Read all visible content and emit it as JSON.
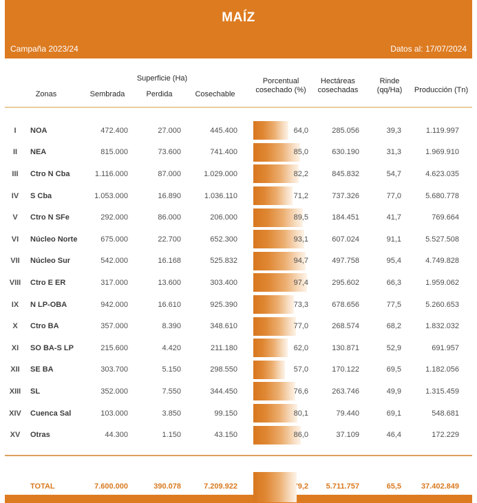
{
  "header": {
    "title": "MAÍZ",
    "campaign": "Campaña 2023/24",
    "data_date": "Datos al: 17/07/2024"
  },
  "table": {
    "group_header": "Superficie (Ha)",
    "columns": {
      "zonas": "Zonas",
      "sembrada": "Sembrada",
      "perdida": "Perdida",
      "cosechable": "Cosechable",
      "porcentual": "Porcentual cosechado (%)",
      "hectareas": "Hectáreas cosechadas",
      "rinde": "Rinde (qq/Ha)",
      "produccion": "Producción (Tn)"
    },
    "rows": [
      {
        "num": "I",
        "zone": "NOA",
        "sembrada": "472.400",
        "perdida": "27.000",
        "cosechable": "445.400",
        "pct": 64.0,
        "pct_label": "64,0",
        "hectareas": "285.056",
        "rinde": "39,3",
        "produccion": "1.119.997"
      },
      {
        "num": "II",
        "zone": "NEA",
        "sembrada": "815.000",
        "perdida": "73.600",
        "cosechable": "741.400",
        "pct": 85.0,
        "pct_label": "85,0",
        "hectareas": "630.190",
        "rinde": "31,3",
        "produccion": "1.969.910"
      },
      {
        "num": "III",
        "zone": "Ctro N Cba",
        "sembrada": "1.116.000",
        "perdida": "87.000",
        "cosechable": "1.029.000",
        "pct": 82.2,
        "pct_label": "82,2",
        "hectareas": "845.832",
        "rinde": "54,7",
        "produccion": "4.623.035"
      },
      {
        "num": "IV",
        "zone": "S Cba",
        "sembrada": "1.053.000",
        "perdida": "16.890",
        "cosechable": "1.036.110",
        "pct": 71.2,
        "pct_label": "71,2",
        "hectareas": "737.326",
        "rinde": "77,0",
        "produccion": "5.680.778"
      },
      {
        "num": "V",
        "zone": "Ctro N SFe",
        "sembrada": "292.000",
        "perdida": "86.000",
        "cosechable": "206.000",
        "pct": 89.5,
        "pct_label": "89,5",
        "hectareas": "184.451",
        "rinde": "41,7",
        "produccion": "769.664"
      },
      {
        "num": "VI",
        "zone": "Núcleo Norte",
        "sembrada": "675.000",
        "perdida": "22.700",
        "cosechable": "652.300",
        "pct": 93.1,
        "pct_label": "93,1",
        "hectareas": "607.024",
        "rinde": "91,1",
        "produccion": "5.527.508"
      },
      {
        "num": "VII",
        "zone": "Núcleo Sur",
        "sembrada": "542.000",
        "perdida": "16.168",
        "cosechable": "525.832",
        "pct": 94.7,
        "pct_label": "94,7",
        "hectareas": "497.758",
        "rinde": "95,4",
        "produccion": "4.749.828"
      },
      {
        "num": "VIII",
        "zone": "Ctro E ER",
        "sembrada": "317.000",
        "perdida": "13.600",
        "cosechable": "303.400",
        "pct": 97.4,
        "pct_label": "97,4",
        "hectareas": "295.602",
        "rinde": "66,3",
        "produccion": "1.959.062"
      },
      {
        "num": "IX",
        "zone": "N LP-OBA",
        "sembrada": "942.000",
        "perdida": "16.610",
        "cosechable": "925.390",
        "pct": 73.3,
        "pct_label": "73,3",
        "hectareas": "678.656",
        "rinde": "77,5",
        "produccion": "5.260.653"
      },
      {
        "num": "X",
        "zone": "Ctro BA",
        "sembrada": "357.000",
        "perdida": "8.390",
        "cosechable": "348.610",
        "pct": 77.0,
        "pct_label": "77,0",
        "hectareas": "268.574",
        "rinde": "68,2",
        "produccion": "1.832.032"
      },
      {
        "num": "XI",
        "zone": "SO BA-S LP",
        "sembrada": "215.600",
        "perdida": "4.420",
        "cosechable": "211.180",
        "pct": 62.0,
        "pct_label": "62,0",
        "hectareas": "130.871",
        "rinde": "52,9",
        "produccion": "691.957"
      },
      {
        "num": "XII",
        "zone": "SE BA",
        "sembrada": "303.700",
        "perdida": "5.150",
        "cosechable": "298.550",
        "pct": 57.0,
        "pct_label": "57,0",
        "hectareas": "170.122",
        "rinde": "69,5",
        "produccion": "1.182.056"
      },
      {
        "num": "XIII",
        "zone": "SL",
        "sembrada": "352.000",
        "perdida": "7.550",
        "cosechable": "344.450",
        "pct": 76.6,
        "pct_label": "76,6",
        "hectareas": "263.746",
        "rinde": "49,9",
        "produccion": "1.315.459"
      },
      {
        "num": "XIV",
        "zone": "Cuenca Sal",
        "sembrada": "103.000",
        "perdida": "3.850",
        "cosechable": "99.150",
        "pct": 80.1,
        "pct_label": "80,1",
        "hectareas": "79.440",
        "rinde": "69,1",
        "produccion": "548.681"
      },
      {
        "num": "XV",
        "zone": "Otras",
        "sembrada": "44.300",
        "perdida": "1.150",
        "cosechable": "43.150",
        "pct": 86.0,
        "pct_label": "86,0",
        "hectareas": "37.109",
        "rinde": "46,4",
        "produccion": "172.229"
      }
    ],
    "total": {
      "label": "TOTAL",
      "sembrada": "7.600.000",
      "perdida": "390.078",
      "cosechable": "7.209.922",
      "pct": 79.2,
      "pct_label": "79,2",
      "hectareas": "5.711.757",
      "rinde": "65,5",
      "produccion": "37.402.849"
    }
  },
  "colors": {
    "accent": "#DD7B21",
    "bar_gradient_start": "#D8771F",
    "bar_gradient_end": "#FDF3E7",
    "rule_light": "#E9CB9B",
    "rule_dark": "#DCA05C",
    "total_text": "#D9791E"
  }
}
